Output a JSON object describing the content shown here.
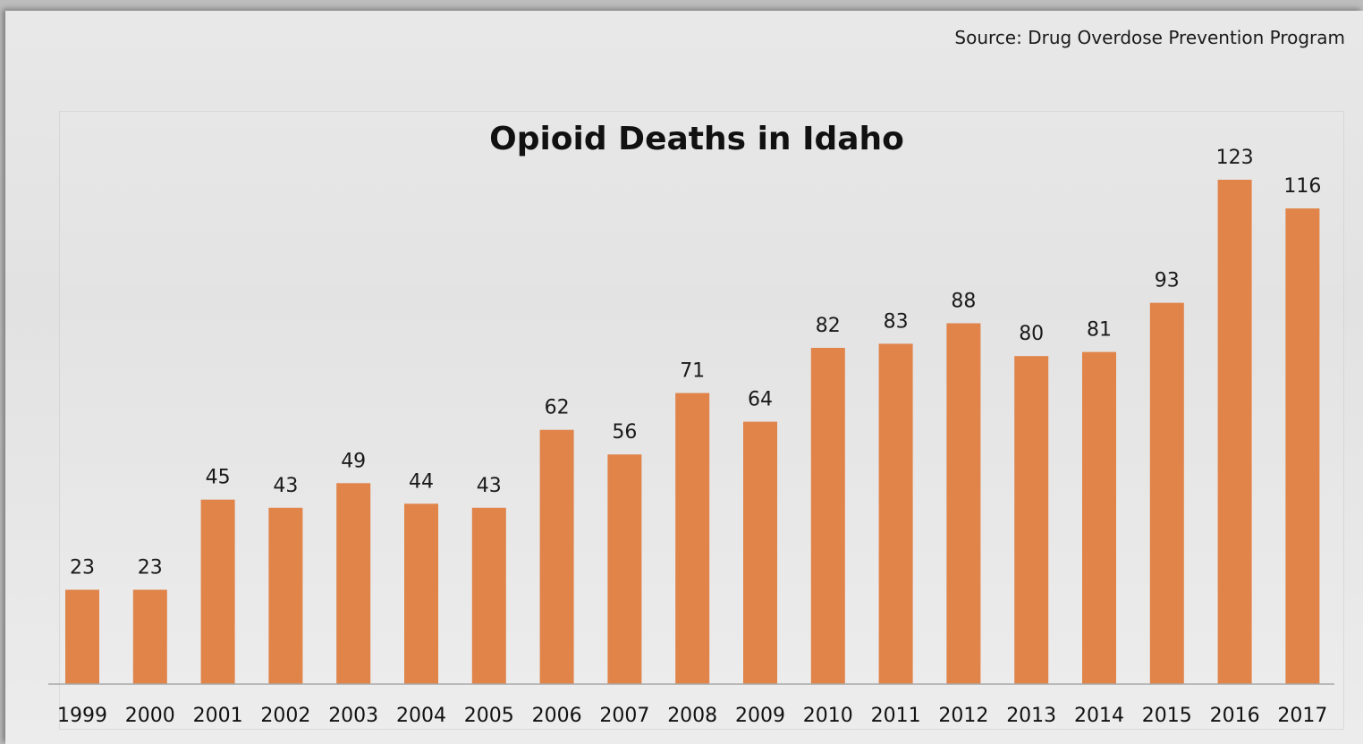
{
  "source_note": "Source: Drug Overdose Prevention Program",
  "chart_data": {
    "type": "bar",
    "title": "Opioid Deaths in Idaho",
    "xlabel": "",
    "ylabel": "",
    "categories": [
      "1999",
      "2000",
      "2001",
      "2002",
      "2003",
      "2004",
      "2005",
      "2006",
      "2007",
      "2008",
      "2009",
      "2010",
      "2011",
      "2012",
      "2013",
      "2014",
      "2015",
      "2016",
      "2017"
    ],
    "values": [
      23,
      23,
      45,
      43,
      49,
      44,
      43,
      62,
      56,
      71,
      64,
      82,
      83,
      88,
      80,
      81,
      93,
      123,
      116
    ],
    "bar_color": "#e0844a",
    "data_labels": true,
    "grid": false,
    "legend": "none"
  }
}
